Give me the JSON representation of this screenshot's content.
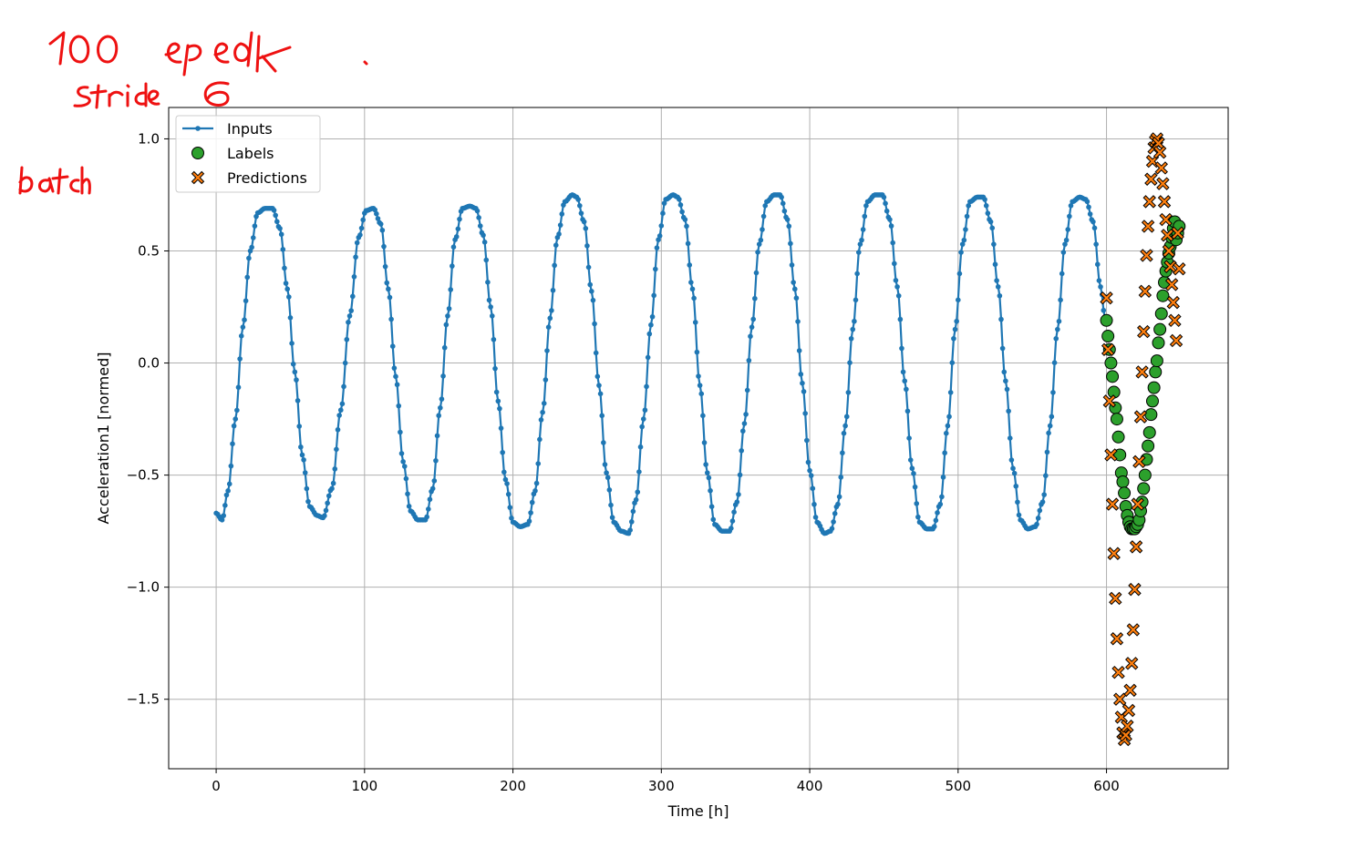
{
  "chart_data": {
    "type": "line",
    "xlabel": "Time [h]",
    "ylabel": "Acceleration1 [normed]",
    "xlim": [
      -32,
      682
    ],
    "ylim": [
      -1.81,
      1.14
    ],
    "xticks": [
      0,
      100,
      200,
      300,
      400,
      500,
      600
    ],
    "xtick_labels": [
      "0",
      "100",
      "200",
      "300",
      "400",
      "500",
      "600"
    ],
    "yticks": [
      1.0,
      0.5,
      0.0,
      -0.5,
      -1.0,
      -1.5
    ],
    "ytick_labels": [
      "1.0",
      "0.5",
      "0.0",
      "−0.5",
      "−1.0",
      "−1.5"
    ],
    "grid": true,
    "legend_position": "top-left",
    "series": [
      {
        "name": "Inputs",
        "kind": "line",
        "color": "#1f77b4",
        "marker": "dot",
        "x_start": 0,
        "x_step": 1,
        "description_values": "600 samples, sinusoid of period ~68.7 h",
        "x": [
          0,
          4,
          8,
          13,
          18,
          23,
          28,
          33,
          38,
          43,
          48,
          53,
          58,
          63,
          68,
          72,
          78,
          84,
          90,
          96,
          101,
          106,
          111,
          116,
          121,
          126,
          131,
          136,
          141,
          146,
          151,
          156,
          161,
          166,
          171,
          175,
          180,
          185,
          190,
          195,
          200,
          205,
          210,
          215,
          220,
          225,
          230,
          235,
          240,
          243,
          248,
          253,
          258,
          263,
          268,
          273,
          278,
          283,
          288,
          293,
          298,
          303,
          308,
          311,
          316,
          321,
          326,
          331,
          336,
          341,
          346,
          351,
          356,
          361,
          366,
          371,
          376,
          380,
          385,
          390,
          395,
          400,
          405,
          410,
          414,
          419,
          424,
          429,
          434,
          439,
          444,
          449,
          454,
          459,
          464,
          469,
          474,
          479,
          483,
          488,
          493,
          498,
          503,
          508,
          513,
          517,
          522,
          527,
          532,
          537,
          542,
          547,
          552,
          557,
          562,
          567,
          572,
          577,
          582,
          586,
          591,
          596,
          599
        ],
        "y": [
          -0.67,
          -0.7,
          -0.57,
          -0.25,
          0.16,
          0.5,
          0.67,
          0.69,
          0.69,
          0.6,
          0.33,
          -0.04,
          -0.41,
          -0.64,
          -0.68,
          -0.69,
          -0.56,
          -0.21,
          0.21,
          0.56,
          0.68,
          0.69,
          0.62,
          0.33,
          -0.06,
          -0.44,
          -0.66,
          -0.7,
          -0.7,
          -0.56,
          -0.2,
          0.21,
          0.55,
          0.69,
          0.7,
          0.69,
          0.57,
          0.25,
          -0.17,
          -0.52,
          -0.71,
          -0.73,
          -0.72,
          -0.57,
          -0.22,
          0.2,
          0.56,
          0.72,
          0.75,
          0.74,
          0.63,
          0.32,
          -0.1,
          -0.49,
          -0.71,
          -0.75,
          -0.76,
          -0.61,
          -0.25,
          0.17,
          0.55,
          0.73,
          0.75,
          0.74,
          0.64,
          0.33,
          -0.1,
          -0.49,
          -0.72,
          -0.75,
          -0.75,
          -0.62,
          -0.27,
          0.16,
          0.53,
          0.72,
          0.75,
          0.75,
          0.64,
          0.33,
          -0.09,
          -0.48,
          -0.71,
          -0.76,
          -0.75,
          -0.63,
          -0.28,
          0.15,
          0.53,
          0.72,
          0.75,
          0.75,
          0.64,
          0.34,
          -0.08,
          -0.47,
          -0.71,
          -0.74,
          -0.74,
          -0.63,
          -0.28,
          0.15,
          0.53,
          0.72,
          0.74,
          0.74,
          0.63,
          0.34,
          -0.08,
          -0.47,
          -0.7,
          -0.74,
          -0.73,
          -0.62,
          -0.28,
          0.15,
          0.53,
          0.72,
          0.74,
          0.73,
          0.63,
          0.34,
          0.2
        ]
      },
      {
        "name": "Labels",
        "kind": "scatter",
        "color": "#2ca02c",
        "marker": "circle",
        "x": [
          600,
          601,
          602,
          603,
          604,
          605,
          606,
          607,
          608,
          609,
          610,
          611,
          612,
          613,
          614,
          615,
          616,
          617,
          618,
          619,
          620,
          621,
          622,
          623,
          624,
          625,
          626,
          627,
          628,
          629,
          630,
          631,
          632,
          633,
          634,
          635,
          636,
          637,
          638,
          639,
          640,
          641,
          642,
          643,
          644,
          645,
          646,
          647,
          648,
          649
        ],
        "y": [
          0.19,
          0.12,
          0.06,
          0.0,
          -0.06,
          -0.13,
          -0.2,
          -0.25,
          -0.33,
          -0.41,
          -0.49,
          -0.53,
          -0.58,
          -0.64,
          -0.68,
          -0.71,
          -0.73,
          -0.74,
          -0.74,
          -0.74,
          -0.73,
          -0.72,
          -0.7,
          -0.66,
          -0.62,
          -0.56,
          -0.5,
          -0.43,
          -0.37,
          -0.31,
          -0.23,
          -0.17,
          -0.11,
          -0.04,
          0.01,
          0.09,
          0.15,
          0.22,
          0.3,
          0.36,
          0.41,
          0.45,
          0.49,
          0.52,
          0.56,
          0.6,
          0.63,
          0.55,
          0.58,
          0.61
        ]
      },
      {
        "name": "Predictions",
        "kind": "scatter",
        "color": "#ff7f0e",
        "marker": "X",
        "x": [
          600,
          601,
          602,
          603,
          604,
          605,
          606,
          607,
          608,
          609,
          610,
          611,
          612,
          613,
          614,
          615,
          616,
          617,
          618,
          619,
          620,
          621,
          622,
          623,
          624,
          625,
          626,
          627,
          628,
          629,
          630,
          631,
          632,
          633,
          634,
          635,
          636,
          637,
          638,
          639,
          640,
          641,
          642,
          643,
          644,
          645,
          646,
          647,
          648,
          649
        ],
        "y": [
          0.29,
          0.06,
          -0.17,
          -0.41,
          -0.63,
          -0.85,
          -1.05,
          -1.23,
          -1.38,
          -1.5,
          -1.58,
          -1.65,
          -1.68,
          -1.66,
          -1.62,
          -1.55,
          -1.46,
          -1.34,
          -1.19,
          -1.01,
          -0.82,
          -0.63,
          -0.44,
          -0.24,
          -0.04,
          0.14,
          0.32,
          0.48,
          0.61,
          0.72,
          0.82,
          0.9,
          0.96,
          0.99,
          1.0,
          0.98,
          0.94,
          0.87,
          0.8,
          0.72,
          0.64,
          0.57,
          0.5,
          0.43,
          0.35,
          0.27,
          0.19,
          0.1,
          0.58,
          0.42
        ]
      }
    ]
  },
  "annotations": [
    {
      "kind": "handwriting",
      "text": "100 epok"
    },
    {
      "kind": "handwriting",
      "text": "stride 6"
    },
    {
      "kind": "handwriting",
      "text": "batch"
    }
  ]
}
